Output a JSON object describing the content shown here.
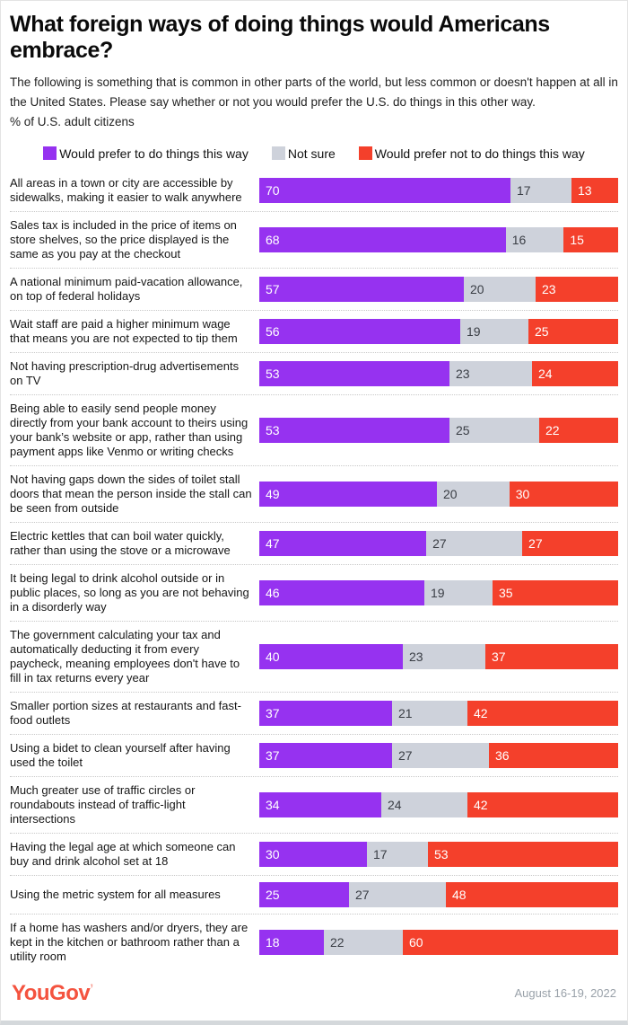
{
  "header": {
    "title": "What foreign ways of doing things would Americans embrace?",
    "description": "The following is something that is common in other parts of the world, but less common or doesn't happen at all in the United States. Please say whether or not you would prefer the U.S. do things in this other way.",
    "population_note": "% of U.S. adult citizens"
  },
  "chart_data": {
    "type": "bar",
    "orientation": "horizontal",
    "stacked": true,
    "value_unit": "percent",
    "axis_range": [
      0,
      100
    ],
    "grid": false,
    "legend_position": "top-center",
    "series": [
      {
        "name": "Would prefer to do things this way",
        "color": "#9632f0",
        "value_text_color": "#ffffff"
      },
      {
        "name": "Not sure",
        "color": "#ced2db",
        "value_text_color": "#3a3e45"
      },
      {
        "name": "Would prefer not to do things this way",
        "color": "#f4402b",
        "value_text_color": "#ffffff"
      }
    ],
    "rows": [
      {
        "label": "All areas in a town or city are accessible by sidewalks, making it easier to walk anywhere",
        "values": [
          70,
          17,
          13
        ]
      },
      {
        "label": "Sales tax is included in the price of items on store shelves, so the price displayed is the same as you pay at the checkout",
        "values": [
          68,
          16,
          15
        ]
      },
      {
        "label": "A national minimum paid-vacation allowance, on top of federal holidays",
        "values": [
          57,
          20,
          23
        ]
      },
      {
        "label": "Wait staff are paid a higher minimum wage that means you are not expected to tip them",
        "values": [
          56,
          19,
          25
        ]
      },
      {
        "label": "Not having prescription-drug advertisements on TV",
        "values": [
          53,
          23,
          24
        ]
      },
      {
        "label": "Being able to easily send people money directly from your bank account to theirs using your bank’s website or app, rather than using payment apps like Venmo or writing checks",
        "values": [
          53,
          25,
          22
        ]
      },
      {
        "label": "Not having gaps down the sides of toilet stall doors that mean the person inside the stall can be seen from outside",
        "values": [
          49,
          20,
          30
        ]
      },
      {
        "label": "Electric kettles that can boil water quickly, rather than using the stove or a microwave",
        "values": [
          47,
          27,
          27
        ]
      },
      {
        "label": "It being legal to drink alcohol outside or in public places, so long as you are not behaving in a disorderly way",
        "values": [
          46,
          19,
          35
        ]
      },
      {
        "label": "The government calculating your tax and automatically deducting it from every paycheck, meaning employees don't have to fill in tax returns every year",
        "values": [
          40,
          23,
          37
        ]
      },
      {
        "label": "Smaller portion sizes at restaurants and fast-food outlets",
        "values": [
          37,
          21,
          42
        ]
      },
      {
        "label": "Using a bidet to clean yourself after having used the toilet",
        "values": [
          37,
          27,
          36
        ]
      },
      {
        "label": "Much greater use of traffic circles or roundabouts instead of traffic-light intersections",
        "values": [
          34,
          24,
          42
        ]
      },
      {
        "label": "Having the legal age at which someone can buy and drink alcohol set at 18",
        "values": [
          30,
          17,
          53
        ]
      },
      {
        "label": "Using the metric system for all measures",
        "values": [
          25,
          27,
          48
        ]
      },
      {
        "label": "If a home has washers and/or dryers, they are kept in the kitchen or bathroom rather than a utility room",
        "values": [
          18,
          22,
          60
        ]
      }
    ]
  },
  "footer": {
    "logo": "YouGov",
    "logo_mark": "’",
    "date": "August 16-19, 2022"
  }
}
